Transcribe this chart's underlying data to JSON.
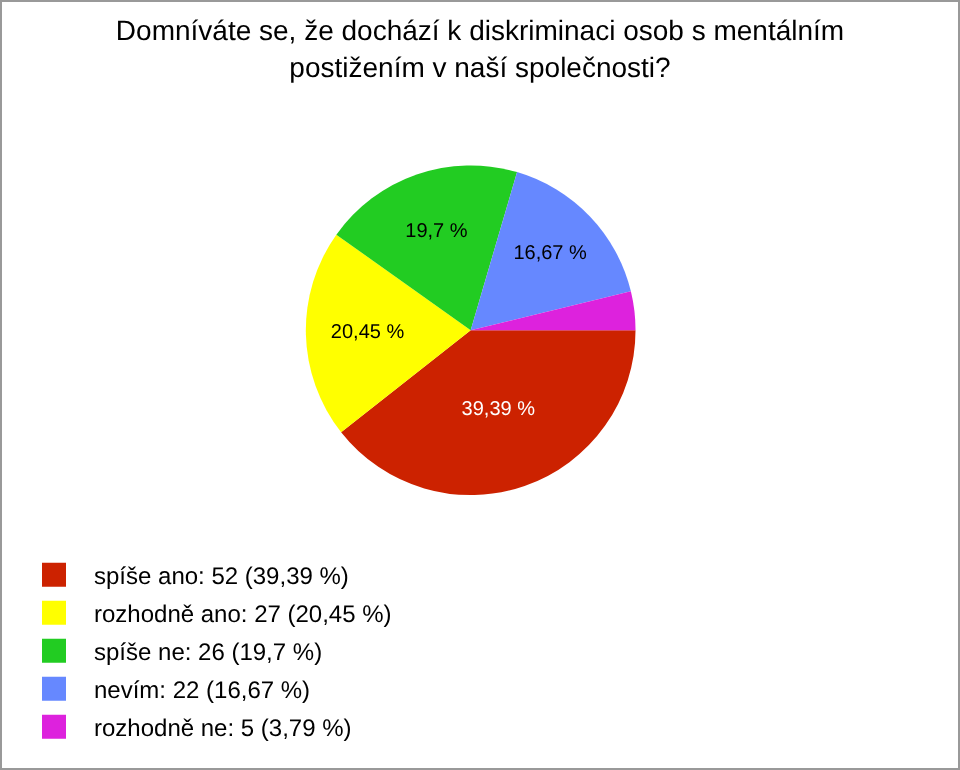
{
  "chart_data": {
    "type": "pie",
    "title": "Domníváte se, že dochází k diskriminaci osob s mentálním\npostižením v naší společnosti?",
    "categories": [
      "spíše ano: 52 (39,39 %)",
      "rozhodně ano: 27 (20,45 %)",
      "spíše ne: 26 (19,7 %)",
      "nevím: 22 (16,67 %)",
      "rozhodně ne: 5 (3,79 %)"
    ],
    "values": [
      39.39,
      20.45,
      19.7,
      16.67,
      3.79
    ],
    "colors": [
      "#cc2200",
      "#ffff00",
      "#22cc22",
      "#6688ff",
      "#dd22dd"
    ],
    "value_labels": [
      "39,39 %",
      "20,45 %",
      "19,7 %",
      "16,67 %",
      null
    ],
    "legend": "bottom left"
  }
}
